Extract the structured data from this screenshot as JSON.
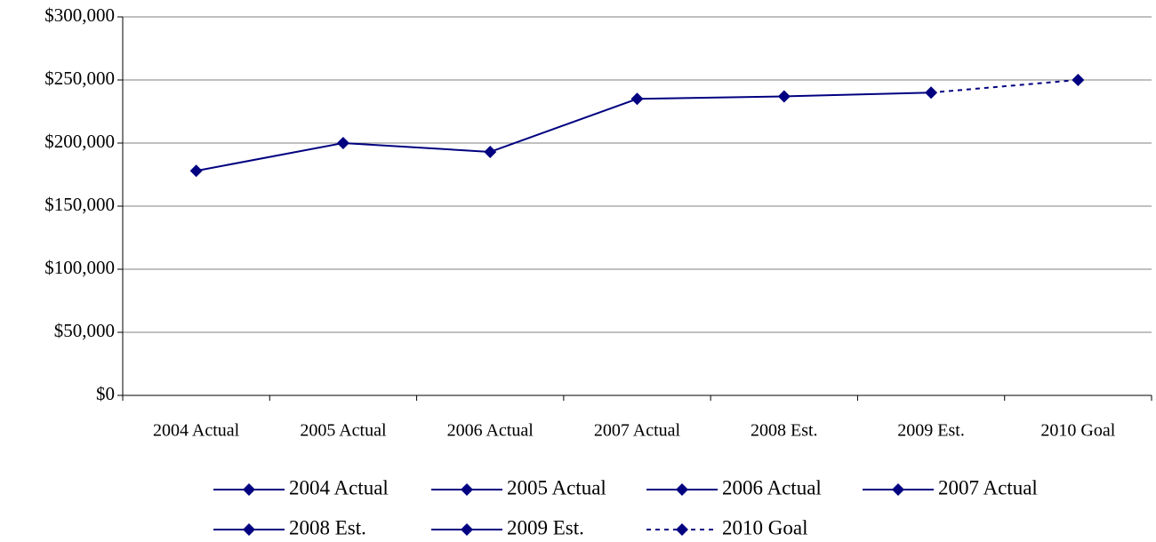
{
  "chart_data": {
    "type": "line",
    "categories": [
      "2004 Actual",
      "2005 Actual",
      "2006 Actual",
      "2007 Actual",
      "2008 Est.",
      "2009 Est.",
      "2010 Goal"
    ],
    "series": [
      {
        "color": "#000080",
        "values": [
          178000,
          200000,
          193000,
          235000,
          237000,
          240000,
          250000
        ],
        "dashed_segments": [
          5
        ]
      }
    ],
    "ylim": [
      0,
      300000
    ],
    "yticks": [
      {
        "value": 0,
        "label": "$0"
      },
      {
        "value": 50000,
        "label": "$50,000"
      },
      {
        "value": 100000,
        "label": "$100,000"
      },
      {
        "value": 150000,
        "label": "$150,000"
      },
      {
        "value": 200000,
        "label": "$200,000"
      },
      {
        "value": 250000,
        "label": "$250,000"
      },
      {
        "value": 300000,
        "label": "$300,000"
      }
    ],
    "grid": true,
    "legend": [
      {
        "name": "2004 Actual",
        "dashed": false
      },
      {
        "name": "2005 Actual",
        "dashed": false
      },
      {
        "name": "2006 Actual",
        "dashed": false
      },
      {
        "name": "2007 Actual",
        "dashed": false
      },
      {
        "name": "2008 Est.",
        "dashed": false
      },
      {
        "name": "2009 Est.",
        "dashed": false
      },
      {
        "name": "2010 Goal",
        "dashed": true
      }
    ],
    "legend_position": "bottom"
  }
}
